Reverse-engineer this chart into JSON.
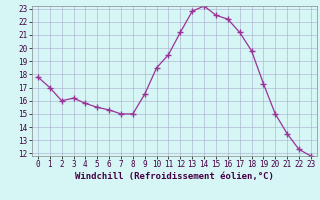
{
  "x": [
    0,
    1,
    2,
    3,
    4,
    5,
    6,
    7,
    8,
    9,
    10,
    11,
    12,
    13,
    14,
    15,
    16,
    17,
    18,
    19,
    20,
    21,
    22,
    23
  ],
  "y": [
    17.8,
    17.0,
    16.0,
    16.2,
    15.8,
    15.5,
    15.3,
    15.0,
    15.0,
    16.5,
    18.5,
    19.5,
    21.2,
    22.8,
    23.2,
    22.5,
    22.2,
    21.2,
    19.8,
    17.3,
    15.0,
    13.5,
    12.3,
    11.8
  ],
  "line_color": "#993399",
  "marker": "+",
  "marker_size": 4,
  "marker_lw": 1.0,
  "bg_color": "#d6f5f5",
  "grid_color": "#aaaacc",
  "xlabel": "Windchill (Refroidissement éolien,°C)",
  "ylim": [
    12,
    23
  ],
  "xlim": [
    -0.5,
    23.5
  ],
  "yticks": [
    12,
    13,
    14,
    15,
    16,
    17,
    18,
    19,
    20,
    21,
    22,
    23
  ],
  "xticks": [
    0,
    1,
    2,
    3,
    4,
    5,
    6,
    7,
    8,
    9,
    10,
    11,
    12,
    13,
    14,
    15,
    16,
    17,
    18,
    19,
    20,
    21,
    22,
    23
  ],
  "tick_fontsize": 5.5,
  "label_fontsize": 6.5
}
